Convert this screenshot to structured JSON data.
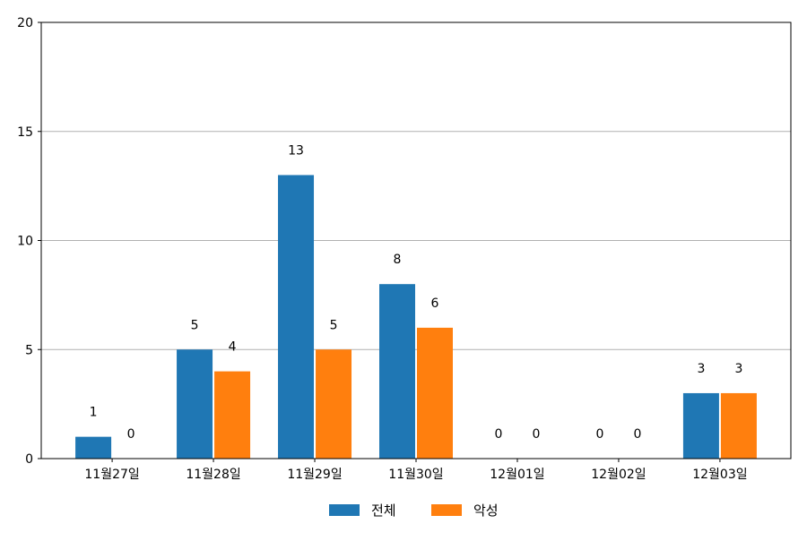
{
  "chart_data": {
    "type": "bar",
    "title": "",
    "xlabel": "",
    "ylabel": "",
    "categories": [
      "11월27일",
      "11월28일",
      "11월29일",
      "11월30일",
      "12월01일",
      "12월02일",
      "12월03일"
    ],
    "series": [
      {
        "name": "전체",
        "values": [
          1,
          5,
          13,
          8,
          0,
          0,
          3
        ],
        "color": "#1f77b4"
      },
      {
        "name": "악성",
        "values": [
          0,
          4,
          5,
          6,
          0,
          0,
          3
        ],
        "color": "#ff7f0e"
      }
    ],
    "ylim": [
      0,
      20
    ],
    "yticks": [
      "0",
      "5",
      "10",
      "15",
      "20"
    ],
    "grid": "horizontal",
    "legend_position": "bottom-center",
    "data_labels": true
  }
}
